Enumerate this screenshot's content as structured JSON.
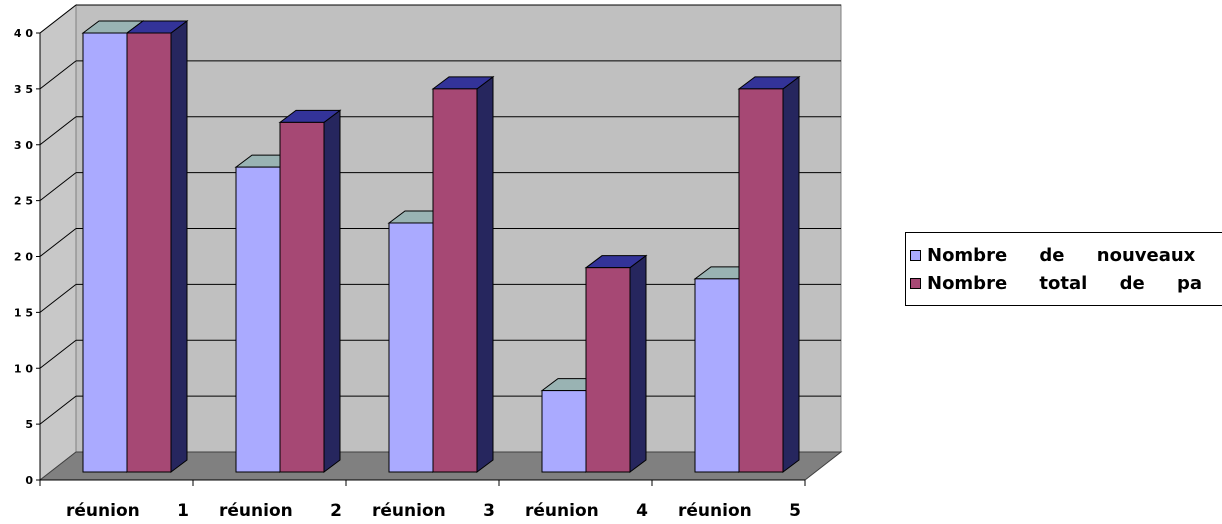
{
  "chart_data": {
    "type": "bar",
    "title": "",
    "xlabel": "",
    "ylabel": "",
    "categories": [
      "réunion 1",
      "réunion 2",
      "réunion 3",
      "réunion 4",
      "réunion 5"
    ],
    "series": [
      {
        "name": "Nombre de nouveaux",
        "color": "#aaaaff",
        "values": [
          40,
          28,
          23,
          8,
          18
        ]
      },
      {
        "name": "Nombre total de pa",
        "color": "#a64874",
        "values": [
          40,
          32,
          35,
          19,
          35
        ]
      }
    ],
    "ylim": [
      0,
      40
    ],
    "yticks": [
      "0",
      "5",
      "1 0",
      "1 5",
      "2 0",
      "2 5",
      "3 0",
      "3 5",
      "4 0"
    ],
    "grid": true,
    "legend_position": "right",
    "three_d": true
  }
}
